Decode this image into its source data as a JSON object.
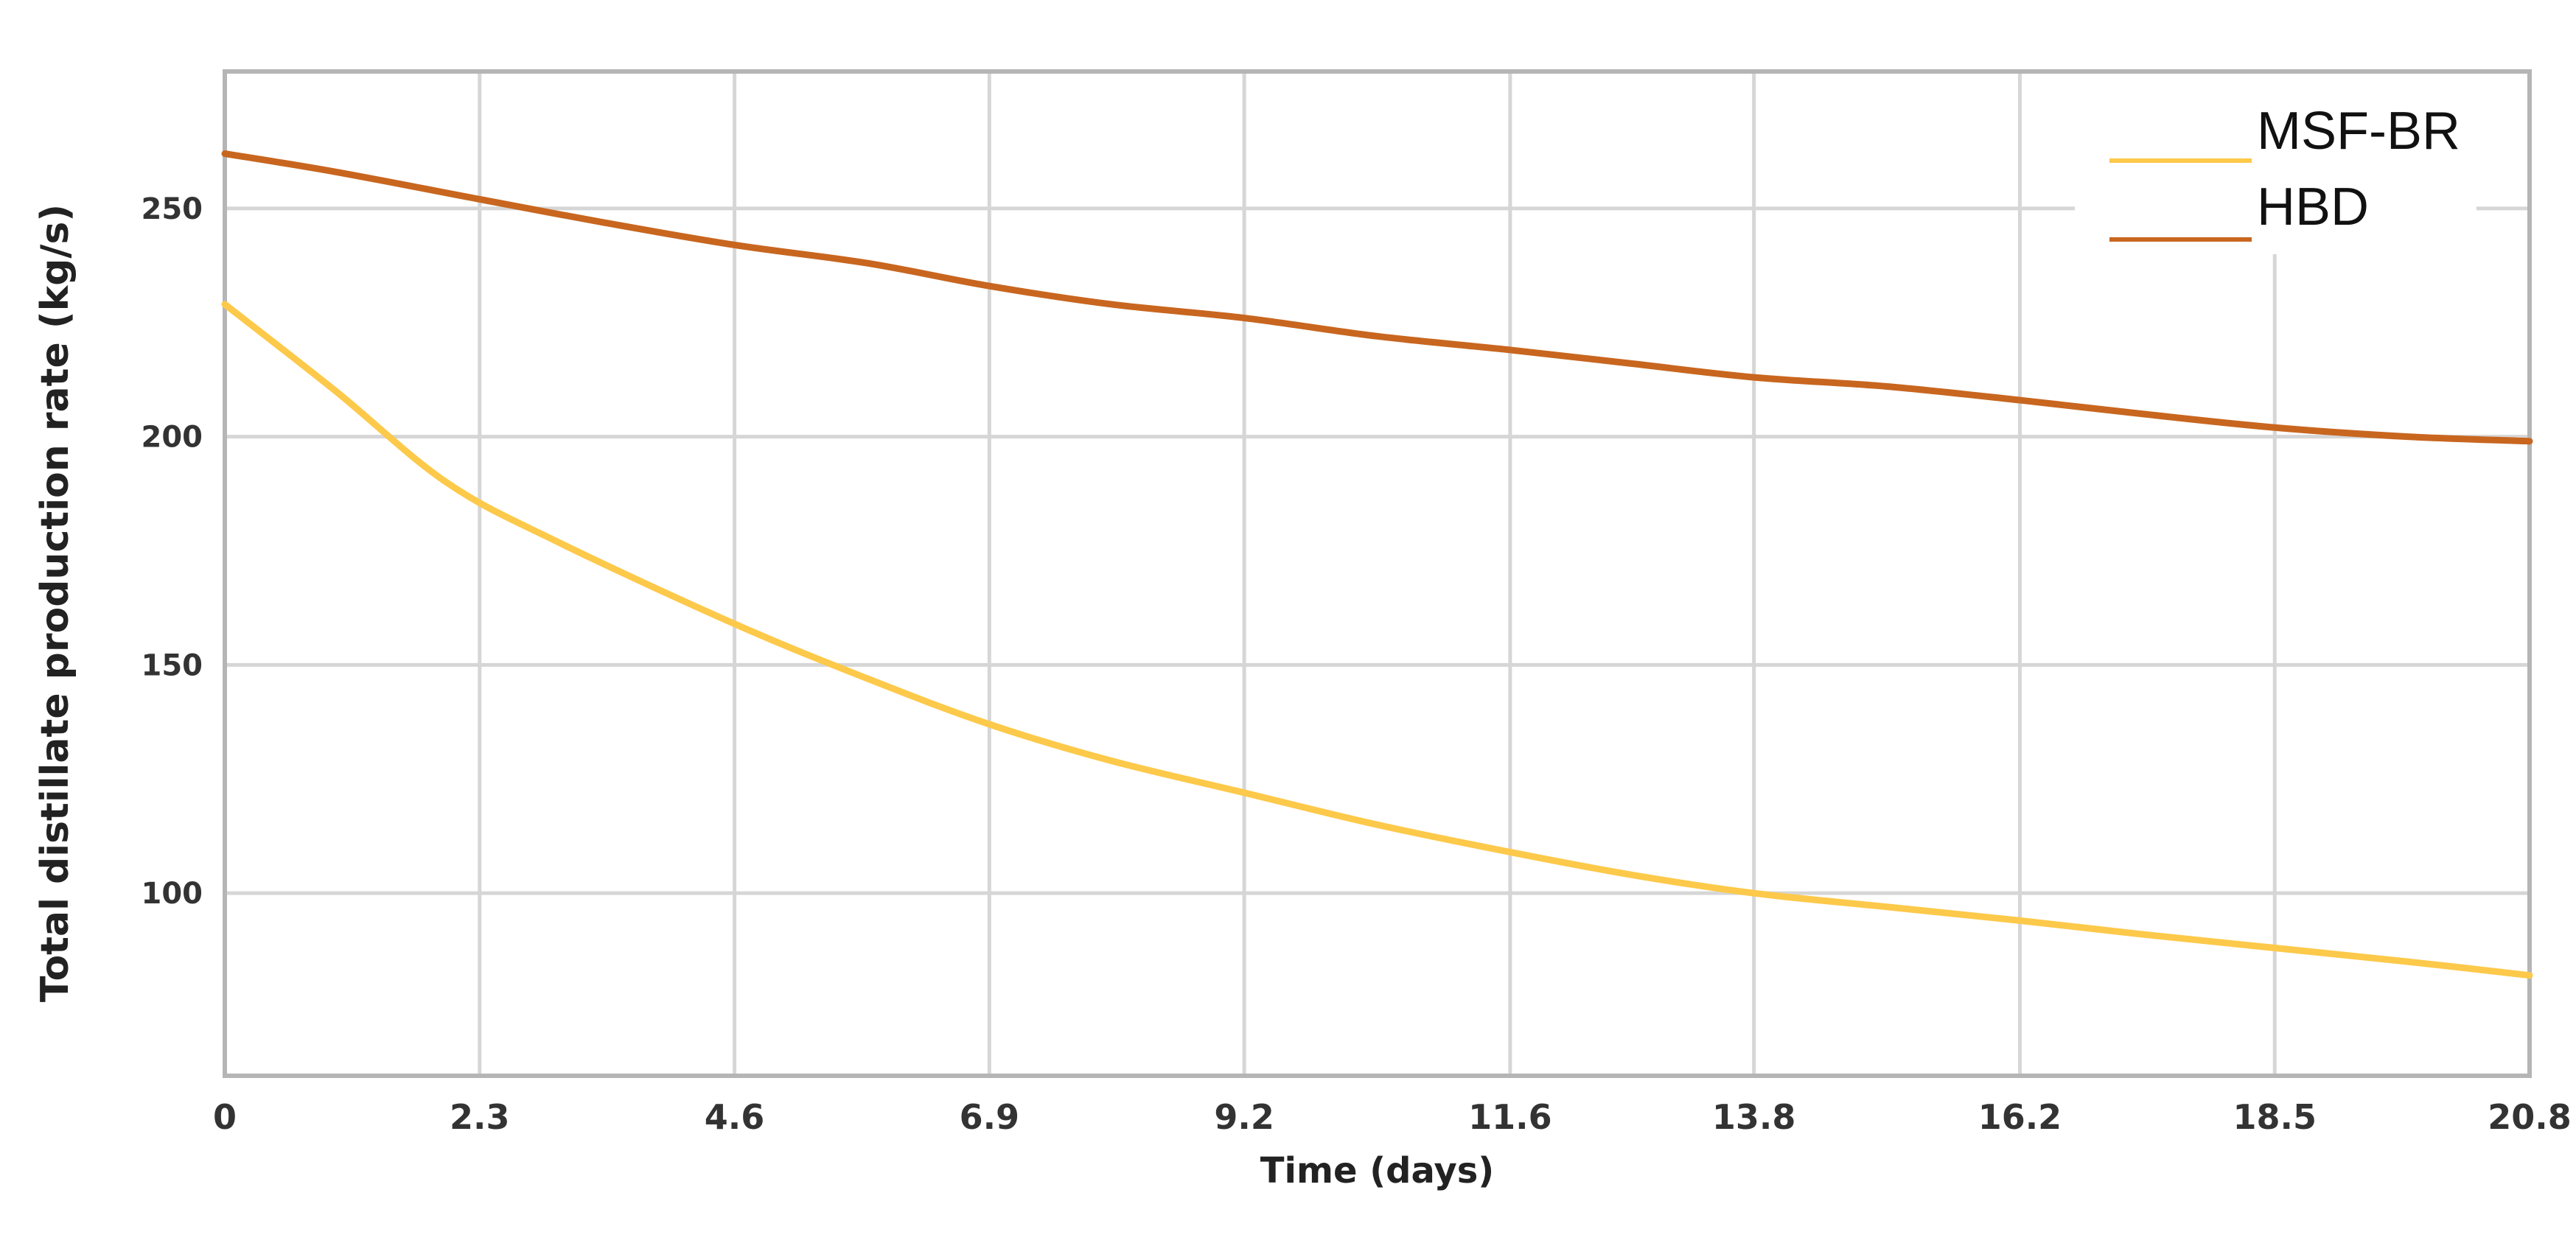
{
  "chart_data": {
    "type": "line",
    "title": "",
    "xlabel": "Time (days)",
    "ylabel": "Total distillate production  rate (kg/s)",
    "xlim": [
      0,
      20.8
    ],
    "ylim": [
      60,
      280
    ],
    "x_ticks": [
      "0",
      "2.3",
      "4.6",
      "6.9",
      "9.2",
      "11.6",
      "13.8",
      "16.2",
      "18.5",
      "20.8"
    ],
    "y_ticks": [
      "100",
      "150",
      "200",
      "250"
    ],
    "grid": true,
    "legend_position": "top-right",
    "series": [
      {
        "name": "MSF-BR",
        "color": "#FDC94A",
        "points": [
          [
            0,
            229
          ],
          [
            1.0,
            210
          ],
          [
            2.0,
            190
          ],
          [
            3.0,
            177
          ],
          [
            4.6,
            159
          ],
          [
            5.8,
            147
          ],
          [
            6.9,
            137
          ],
          [
            8.0,
            129
          ],
          [
            9.2,
            122
          ],
          [
            10.4,
            115
          ],
          [
            11.6,
            109
          ],
          [
            12.7,
            104
          ],
          [
            13.8,
            100
          ],
          [
            15.0,
            97
          ],
          [
            16.2,
            94
          ],
          [
            17.3,
            91
          ],
          [
            18.5,
            88
          ],
          [
            19.7,
            85
          ],
          [
            20.8,
            82
          ]
        ]
      },
      {
        "name": "HBD",
        "color": "#C8661F",
        "points": [
          [
            0,
            262
          ],
          [
            1.0,
            258
          ],
          [
            2.3,
            252
          ],
          [
            3.4,
            247
          ],
          [
            4.6,
            242
          ],
          [
            5.8,
            238
          ],
          [
            6.9,
            233
          ],
          [
            8.0,
            229
          ],
          [
            9.2,
            226
          ],
          [
            10.4,
            222
          ],
          [
            11.6,
            219
          ],
          [
            12.7,
            216
          ],
          [
            13.8,
            213
          ],
          [
            15.0,
            211
          ],
          [
            16.2,
            208
          ],
          [
            17.3,
            205
          ],
          [
            18.5,
            202
          ],
          [
            19.7,
            200
          ],
          [
            20.8,
            199
          ]
        ]
      }
    ]
  }
}
